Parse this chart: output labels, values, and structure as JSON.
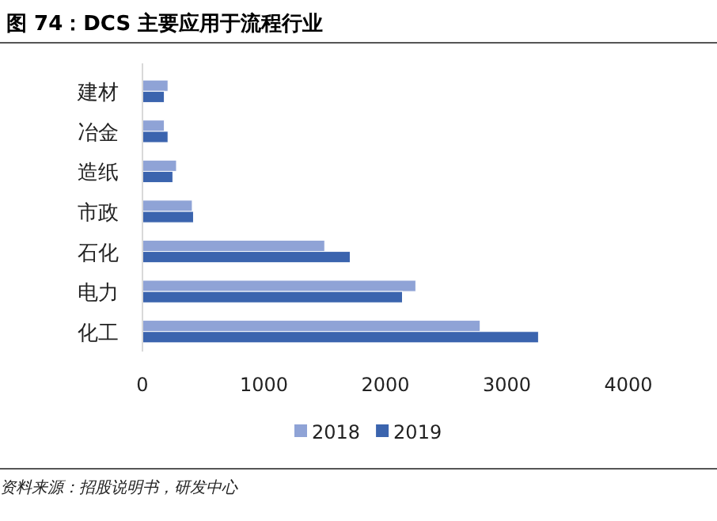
{
  "chart_data": {
    "type": "bar",
    "orientation": "horizontal",
    "title": "图 74：DCS 主要应用于流程行业",
    "categories": [
      "建材",
      "冶金",
      "造纸",
      "市政",
      "石化",
      "电力",
      "化工"
    ],
    "series": [
      {
        "name": "2018",
        "color": "#8fa3d6",
        "values": [
          210,
          180,
          280,
          410,
          1500,
          2250,
          2780
        ]
      },
      {
        "name": "2019",
        "color": "#3b64ae",
        "values": [
          180,
          210,
          250,
          420,
          1710,
          2140,
          3260
        ]
      }
    ],
    "xlim": [
      0,
      4000
    ],
    "xticks": [
      0,
      1000,
      2000,
      3000,
      4000
    ],
    "legend": "bottom",
    "annotations": [
      "资料来源：招股说明书，研发中心"
    ]
  }
}
